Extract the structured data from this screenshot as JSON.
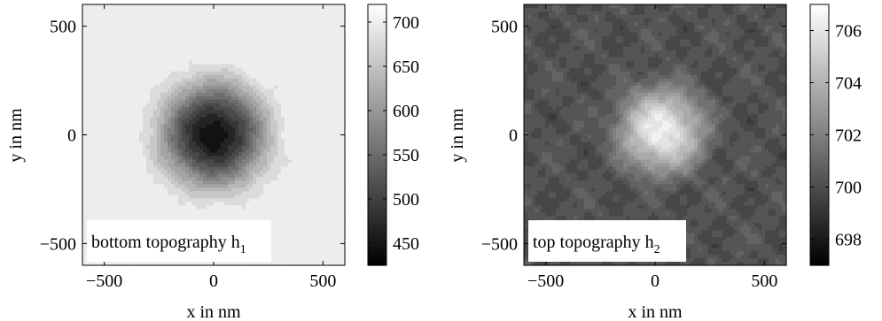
{
  "chart_data": [
    {
      "type": "heatmap",
      "panel": "left",
      "annotation": "bottom topography h",
      "annotation_subscript": "1",
      "xlabel": "x in nm",
      "ylabel": "y in nm",
      "xlim": [
        -600,
        600
      ],
      "ylim": [
        -600,
        600
      ],
      "xticks": [
        -500,
        0,
        500
      ],
      "yticks": [
        -500,
        0,
        500
      ],
      "xtick_labels": [
        "−500",
        "0",
        "500"
      ],
      "ytick_labels": [
        "−500",
        "0",
        "500"
      ],
      "colormap": "gray",
      "clim": [
        425,
        720
      ],
      "colorbar_ticks": [
        450,
        500,
        550,
        600,
        650,
        700
      ],
      "colorbar_tick_labels": [
        "450",
        "500",
        "550",
        "600",
        "650",
        "700"
      ],
      "field": {
        "shape": "radial-bump",
        "center": [
          0,
          0
        ],
        "background_value": 700,
        "center_value": 440,
        "radius": 385,
        "filled_contour_levels": 14,
        "noise_amplitude": 6
      }
    },
    {
      "type": "heatmap",
      "panel": "right",
      "annotation": "top topography h",
      "annotation_subscript": "2",
      "xlabel": "x in nm",
      "ylabel": "y in nm",
      "xlim": [
        -600,
        600
      ],
      "ylim": [
        -600,
        600
      ],
      "xticks": [
        -500,
        0,
        500
      ],
      "yticks": [
        -500,
        0,
        500
      ],
      "xtick_labels": [
        "−500",
        "0",
        "500"
      ],
      "ytick_labels": [
        "−500",
        "0",
        "500"
      ],
      "colormap": "gray",
      "clim": [
        697,
        707
      ],
      "colorbar_ticks": [
        698,
        700,
        702,
        704,
        706
      ],
      "colorbar_tick_labels": [
        "698",
        "700",
        "702",
        "704",
        "706"
      ],
      "field": {
        "shape": "radial-bump",
        "center": [
          30,
          20
        ],
        "background_value": 700.2,
        "center_value": 706.3,
        "radius": 330,
        "filled_contour_levels": 18,
        "noise_amplitude": 0.45
      }
    }
  ]
}
